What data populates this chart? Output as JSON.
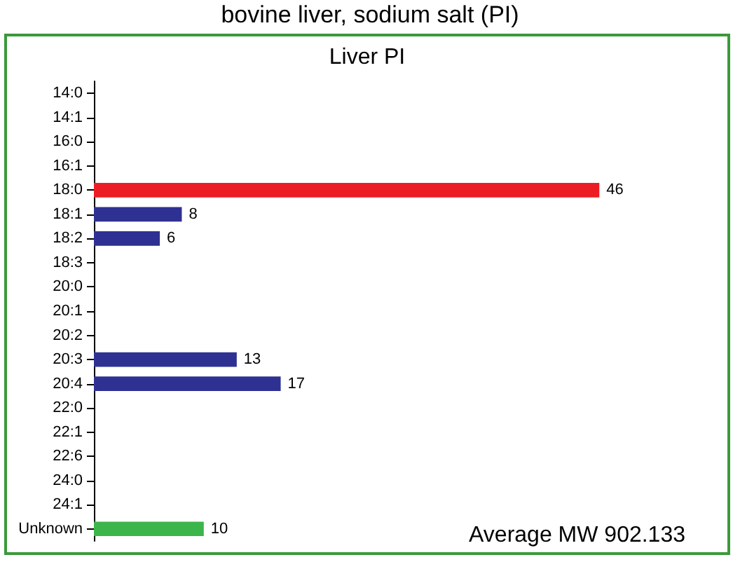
{
  "chart_data": {
    "type": "bar",
    "orientation": "horizontal",
    "title": "bovine liver, sodium salt (PI)",
    "subtitle": "Liver PI",
    "categories": [
      "14:0",
      "14:1",
      "16:0",
      "16:1",
      "18:0",
      "18:1",
      "18:2",
      "18:3",
      "20:0",
      "20:1",
      "20:2",
      "20:3",
      "20:4",
      "22:0",
      "22:1",
      "22:6",
      "24:0",
      "24:1",
      "Unknown"
    ],
    "values": [
      null,
      null,
      null,
      null,
      46,
      8,
      6,
      null,
      null,
      null,
      null,
      13,
      17,
      null,
      null,
      null,
      null,
      null,
      10
    ],
    "colors": [
      "#2e3192",
      "#2e3192",
      "#2e3192",
      "#2e3192",
      "#ec1c24",
      "#2e3192",
      "#2e3192",
      "#2e3192",
      "#2e3192",
      "#2e3192",
      "#2e3192",
      "#2e3192",
      "#2e3192",
      "#2e3192",
      "#2e3192",
      "#2e3192",
      "#2e3192",
      "#2e3192",
      "#3cb54a"
    ],
    "data_labels": true,
    "annotations": [
      "Average MW 902.133"
    ]
  }
}
